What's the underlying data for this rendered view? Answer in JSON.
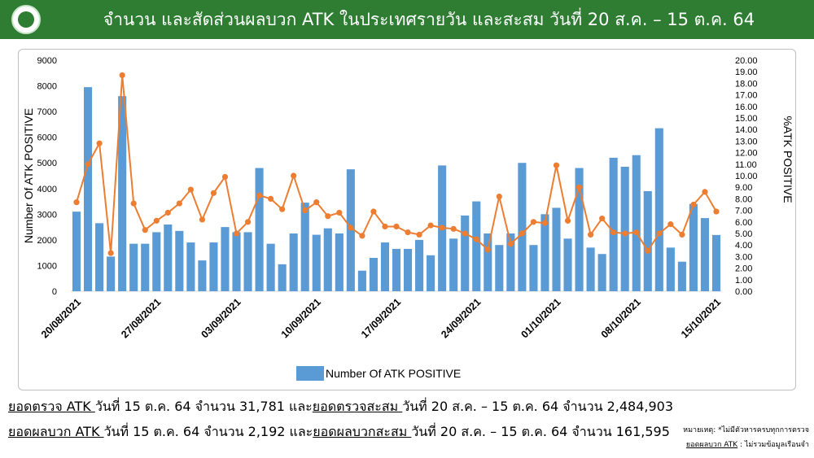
{
  "header": {
    "title": "จำนวน และสัดส่วนผลบวก ATK ในประเทศรายวัน และสะสม วันที่ 20 ส.ค. – 15 ต.ค. 64"
  },
  "chart_data": {
    "type": "bar+line",
    "left_axis_label": "Number Of ATK POSITIVE",
    "right_axis_label": "%ATK POSITIVE",
    "left_ylim": [
      0,
      9000
    ],
    "right_ylim": [
      0,
      20
    ],
    "left_ticks": [
      "0",
      "1000",
      "2000",
      "3000",
      "4000",
      "5000",
      "6000",
      "7000",
      "8000",
      "9000"
    ],
    "right_ticks": [
      "0.00",
      "1.00",
      "2.00",
      "3.00",
      "4.00",
      "5.00",
      "6.00",
      "7.00",
      "8.00",
      "9.00",
      "10.00",
      "11.00",
      "12.00",
      "13.00",
      "14.00",
      "15.00",
      "16.00",
      "17.00",
      "18.00",
      "19.00",
      "20.00"
    ],
    "x_tick_labels": [
      {
        "index": 0,
        "label": "20/08/2021"
      },
      {
        "index": 7,
        "label": "27/08/2021"
      },
      {
        "index": 14,
        "label": "03/09/2021"
      },
      {
        "index": 21,
        "label": "10/09/2021"
      },
      {
        "index": 28,
        "label": "17/09/2021"
      },
      {
        "index": 35,
        "label": "24/09/2021"
      },
      {
        "index": 42,
        "label": "01/10/2021"
      },
      {
        "index": 49,
        "label": "08/10/2021"
      },
      {
        "index": 56,
        "label": "15/10/2021"
      }
    ],
    "bar_series_name": "Number Of ATK POSITIVE",
    "bar_color": "#5b9bd5",
    "line_color": "#ed7d31",
    "bar_values": [
      3100,
      7950,
      2650,
      1350,
      7600,
      1850,
      1850,
      2300,
      2600,
      2350,
      1900,
      1200,
      1900,
      2500,
      2300,
      2300,
      4800,
      1850,
      1050,
      2250,
      3450,
      2200,
      2450,
      2250,
      4750,
      800,
      1300,
      1900,
      1650,
      1650,
      2000,
      1400,
      4900,
      2050,
      2950,
      3500,
      2250,
      1800,
      2250,
      5000,
      1800,
      3000,
      3250,
      2050,
      4800,
      1700,
      1450,
      5200,
      4850,
      5300,
      3900,
      6350,
      1700,
      1150,
      3400,
      2850,
      2192
    ],
    "pct_values": [
      7.7,
      11.0,
      12.8,
      3.3,
      18.7,
      7.6,
      5.3,
      6.1,
      6.8,
      7.6,
      8.8,
      6.2,
      8.5,
      9.9,
      5.0,
      6.0,
      8.3,
      8.0,
      7.1,
      10.0,
      7.0,
      7.7,
      6.5,
      6.8,
      5.5,
      4.8,
      6.9,
      5.6,
      5.6,
      5.1,
      4.9,
      5.7,
      5.5,
      5.4,
      5.0,
      4.5,
      3.6,
      8.2,
      4.1,
      5.0,
      6.0,
      5.9,
      10.9,
      6.1,
      9.0,
      4.9,
      6.3,
      5.1,
      5.0,
      5.1,
      3.5,
      5.0,
      5.8,
      4.9,
      7.5,
      8.6,
      6.9
    ]
  },
  "stats": {
    "line1": {
      "a": "ยอดตรวจ ATK ",
      "b": "วันที่ 15 ต.ค. 64 จำนวน 31,781 และ",
      "c": "ยอดตรวจสะสม ",
      "d": "วันที่ 20 ส.ค. – 15 ต.ค. 64 จำนวน 2,484,903"
    },
    "line2": {
      "a": "ยอดผลบวก ATK ",
      "b": "วันที่ 15 ต.ค. 64 จำนวน 2,192 และ",
      "c": "ยอดผลบวกสะสม ",
      "d": "วันที่ 20 ส.ค. – 15 ต.ค. 64 จำนวน 161,595"
    }
  },
  "notes": {
    "line1": "หมายเหตุ: *ไม่มีตัวหารครบทุกการตรวจ",
    "line2a": "ยอดผลบวก ATK",
    "line2b": " : ไม่รวมข้อมูลเรือนจำ"
  }
}
